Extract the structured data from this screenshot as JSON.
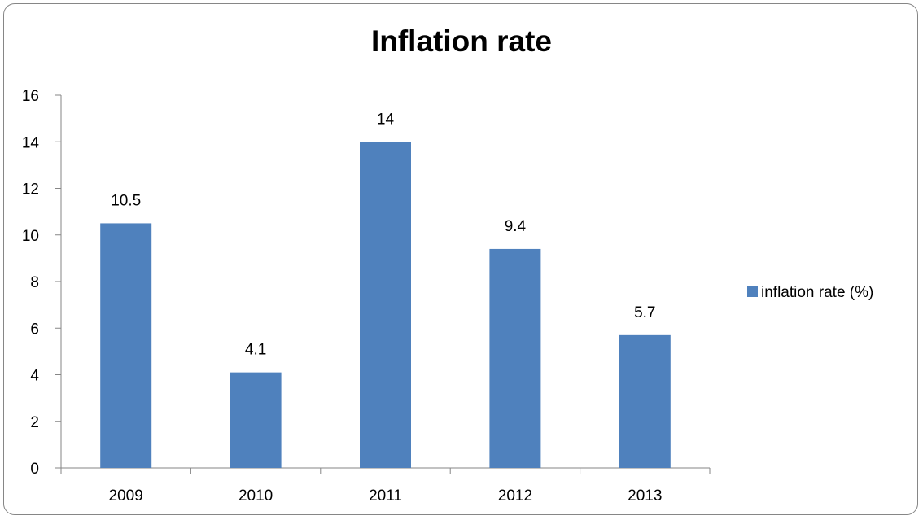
{
  "chart_data": {
    "type": "bar",
    "title": "Inflation rate",
    "categories": [
      "2009",
      "2010",
      "2011",
      "2012",
      "2013"
    ],
    "series": [
      {
        "name": "inflation rate (%)",
        "values": [
          10.5,
          4.1,
          14,
          9.4,
          5.7
        ],
        "color": "#4F81BD"
      }
    ],
    "ylim": [
      0,
      16
    ],
    "yticks": [
      0,
      2,
      4,
      6,
      8,
      10,
      12,
      14,
      16
    ],
    "data_labels": [
      "10.5",
      "4.1",
      "14",
      "9.4",
      "5.7"
    ],
    "grid": false,
    "legend": "right"
  }
}
